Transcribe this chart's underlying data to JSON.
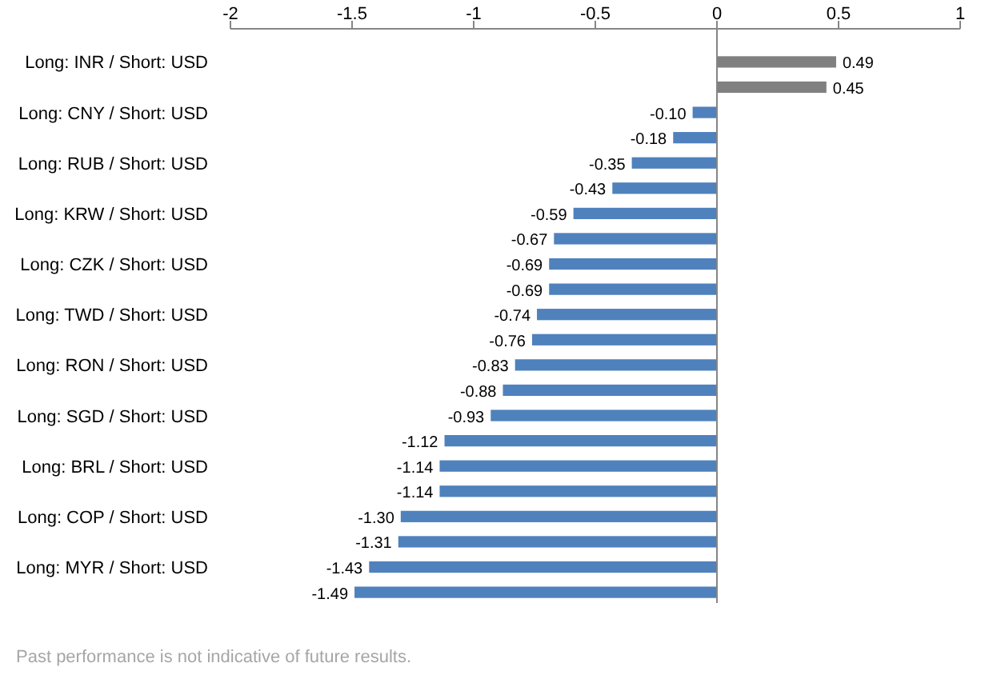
{
  "chart_data": {
    "type": "bar",
    "orientation": "horizontal",
    "categories": [
      "Long: INR / Short: USD",
      null,
      "Long: CNY / Short: USD",
      null,
      "Long: RUB / Short: USD",
      null,
      "Long: KRW / Short: USD",
      null,
      "Long: CZK / Short: USD",
      null,
      "Long: TWD / Short: USD",
      null,
      "Long: RON / Short: USD",
      null,
      "Long: SGD / Short: USD",
      null,
      "Long: BRL / Short: USD",
      null,
      "Long: COP / Short: USD",
      null,
      "Long: MYR / Short: USD",
      null
    ],
    "values": [
      0.49,
      0.45,
      -0.1,
      -0.18,
      -0.35,
      -0.43,
      -0.59,
      -0.67,
      -0.69,
      -0.69,
      -0.74,
      -0.76,
      -0.83,
      -0.88,
      -0.93,
      -1.12,
      -1.14,
      -1.14,
      -1.3,
      -1.31,
      -1.43,
      -1.49
    ],
    "value_labels": [
      "0.49",
      "0.45",
      "-0.10",
      "-0.18",
      "-0.35",
      "-0.43",
      "-0.59",
      "-0.67",
      "-0.69",
      "-0.69",
      "-0.74",
      "-0.76",
      "-0.83",
      "-0.88",
      "-0.93",
      "-1.12",
      "-1.14",
      "-1.14",
      "-1.30",
      "-1.31",
      "-1.43",
      "-1.49"
    ],
    "colors": [
      "#808080",
      "#808080",
      "#4f81bd",
      "#4f81bd",
      "#4f81bd",
      "#4f81bd",
      "#4f81bd",
      "#4f81bd",
      "#4f81bd",
      "#4f81bd",
      "#4f81bd",
      "#4f81bd",
      "#4f81bd",
      "#4f81bd",
      "#4f81bd",
      "#4f81bd",
      "#4f81bd",
      "#4f81bd",
      "#4f81bd",
      "#4f81bd",
      "#4f81bd",
      "#4f81bd"
    ],
    "xlim": [
      -2,
      1
    ],
    "xticks": [
      -2,
      -1.5,
      -1,
      -0.5,
      0,
      0.5,
      1
    ],
    "annotations": [
      "Past performance is not indicative of future results."
    ]
  }
}
